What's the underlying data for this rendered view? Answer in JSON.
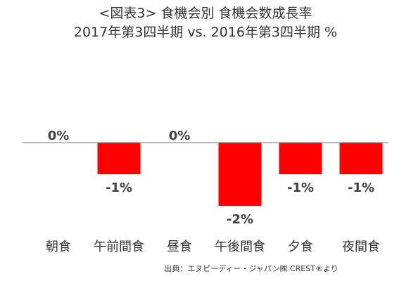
{
  "title": {
    "line1": "<図表3> 食機会別 食機会数成長率",
    "line2": "2017年第3四半期 vs. 2016年第3四半期 %"
  },
  "source": "出典：エヌピーディー・ジャパン㈱ CREST®より",
  "colors": {
    "bar": "#ff0000",
    "axis": "#8c8c8c",
    "text": "#333333",
    "value_text": "#404040"
  },
  "chart_data": {
    "type": "bar",
    "title": "<図表3> 食機会別 食機会数成長率 2017年第3四半期 vs. 2016年第3四半期 %",
    "xlabel": "",
    "ylabel": "",
    "categories": [
      "朝食",
      "午前間食",
      "昼食",
      "午後間食",
      "夕食",
      "夜間食"
    ],
    "values": [
      0,
      -1,
      0,
      -2,
      -1,
      -1
    ],
    "value_labels": [
      "0%",
      "-1%",
      "0%",
      "-2%",
      "-1%",
      "-1%"
    ],
    "ylim": [
      -2,
      0
    ],
    "grid": false,
    "legend": "none"
  }
}
